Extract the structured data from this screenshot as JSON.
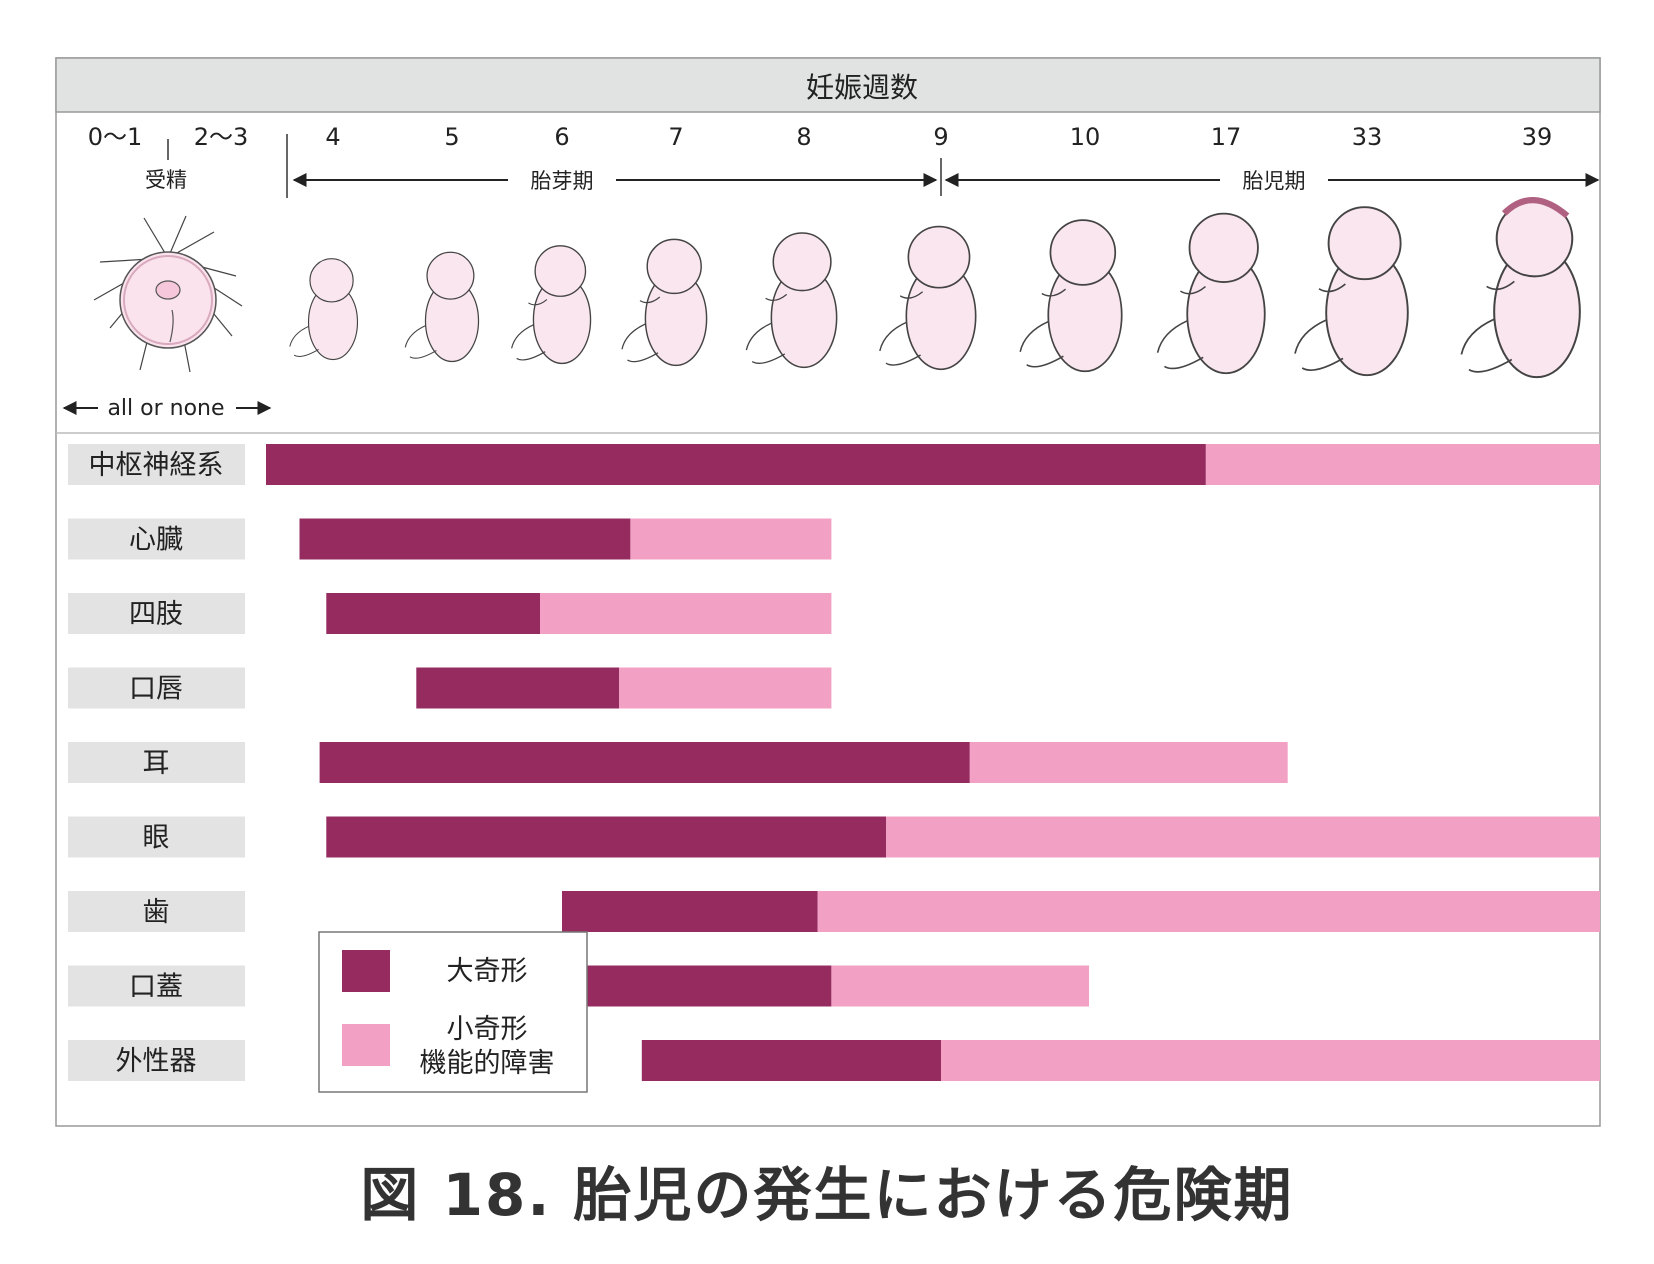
{
  "header": {
    "title": "妊娠週数"
  },
  "weeks": {
    "first_group": "0～1",
    "second_group": "2～3",
    "labels": [
      "4",
      "5",
      "6",
      "7",
      "8",
      "9",
      "10",
      "17",
      "33",
      "39"
    ]
  },
  "periods": {
    "fertilization": "受精",
    "embryonic": "胎芽期",
    "fetal": "胎児期",
    "all_or_none": "all or none"
  },
  "legend": {
    "major": {
      "label": "大奇形"
    },
    "minor": {
      "line1": "小奇形",
      "line2": "機能的障害"
    }
  },
  "colors": {
    "major": "#952b5e",
    "minor": "#f2a0c4",
    "label_bg": "#e3e3e3",
    "header_bg": "#e1e2e2",
    "embryo_fill": "#fae6ee"
  },
  "chart_data": {
    "type": "bar",
    "orientation": "horizontal",
    "stacked": true,
    "x_axis": "妊娠週数",
    "categories": [
      "中枢神経系",
      "心臓",
      "四肢",
      "口唇",
      "耳",
      "眼",
      "歯",
      "口蓋",
      "外性器"
    ],
    "series": [
      {
        "name": "大奇形",
        "color": "#952b5e",
        "start_week": [
          3,
          3.5,
          3.9,
          4.7,
          3.8,
          3.9,
          6.0,
          6.0,
          6.7
        ],
        "end_week": [
          16,
          6.6,
          5.8,
          6.5,
          9.2,
          8.6,
          8.1,
          8.2,
          9.0
        ]
      },
      {
        "name": "小奇形 機能的障害",
        "color": "#f2a0c4",
        "start_week": [
          16,
          6.6,
          5.8,
          6.5,
          9.2,
          8.6,
          8.1,
          8.2,
          9.0
        ],
        "end_week": [
          39,
          8.2,
          8.2,
          8.2,
          24,
          39,
          39,
          10.2,
          39
        ]
      }
    ]
  },
  "caption": "図 18.  胎児の発生における危険期"
}
